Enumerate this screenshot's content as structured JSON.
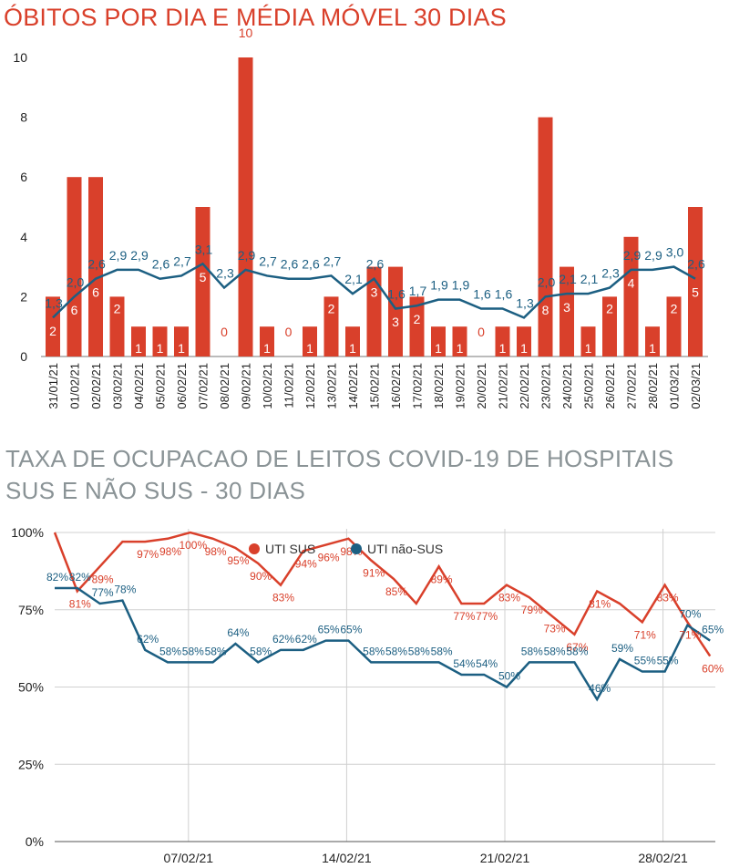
{
  "colors": {
    "red": "#d9402b",
    "blue": "#1c5f82",
    "grid": "#d0d0d0",
    "axis_text": "#222222"
  },
  "chart_data": [
    {
      "type": "bar",
      "title": "ÓBITOS POR DIA E MÉDIA MÓVEL 30 DIAS",
      "categories": [
        "31/01/21",
        "01/02/21",
        "02/02/21",
        "03/02/21",
        "04/02/21",
        "05/02/21",
        "06/02/21",
        "07/02/21",
        "08/02/21",
        "09/02/21",
        "10/02/21",
        "11/02/21",
        "12/02/21",
        "13/02/21",
        "14/02/21",
        "15/02/21",
        "16/02/21",
        "17/02/21",
        "18/02/21",
        "19/02/21",
        "20/02/21",
        "21/02/21",
        "22/02/21",
        "23/02/21",
        "24/02/21",
        "25/02/21",
        "26/02/21",
        "27/02/21",
        "28/02/21",
        "01/03/21",
        "02/03/21"
      ],
      "series": [
        {
          "type": "bar",
          "values": [
            2,
            6,
            6,
            2,
            1,
            1,
            1,
            5,
            0,
            10,
            1,
            0,
            1,
            2,
            1,
            3,
            3,
            2,
            1,
            1,
            0,
            1,
            1,
            8,
            3,
            1,
            2,
            4,
            1,
            2,
            5
          ],
          "labels": [
            "2",
            "6",
            "6",
            "2",
            "1",
            "1",
            "1",
            "5",
            "0",
            "10",
            "1",
            "0",
            "1",
            "2",
            "1",
            "3",
            "3",
            "2",
            "1",
            "1",
            "0",
            "1",
            "1",
            "8",
            "3",
            "1",
            "2",
            "4",
            "1",
            "2",
            "5"
          ]
        },
        {
          "type": "line",
          "values": [
            1.3,
            2.0,
            2.6,
            2.9,
            2.9,
            2.6,
            2.7,
            3.1,
            2.3,
            2.9,
            2.7,
            2.6,
            2.6,
            2.7,
            2.1,
            2.6,
            1.6,
            1.7,
            1.9,
            1.9,
            1.6,
            1.6,
            1.3,
            2.0,
            2.1,
            2.1,
            2.3,
            2.9,
            2.9,
            3.0,
            2.6
          ],
          "labels": [
            "1,3",
            "2,0",
            "2,6",
            "2,9",
            "2,9",
            "2,6",
            "2,7",
            "3,1",
            "2,3",
            "2,9",
            "2,7",
            "2,6",
            "2,6",
            "2,7",
            "2,1",
            "2,6",
            "1,6",
            "1,7",
            "1,9",
            "1,9",
            "1,6",
            "1,6",
            "1,3",
            "2,0",
            "2,1",
            "2,1",
            "2,3",
            "2,9",
            "2,9",
            "3,0",
            "2,6"
          ]
        }
      ],
      "y_ticks": [
        "0",
        "2",
        "4",
        "6",
        "8",
        "10"
      ],
      "ylim": [
        0,
        10
      ],
      "grid": false
    },
    {
      "type": "line",
      "title": "TAXA DE OCUPACAO DE LEITOS COVID-19 DE HOSPITAIS SUS E NÃO SUS - 30 DIAS",
      "x_ticks": [
        "07/02/21",
        "14/02/21",
        "21/02/21",
        "28/02/21"
      ],
      "y_ticks": [
        "0%",
        "25%",
        "50%",
        "75%",
        "100%"
      ],
      "ylim": [
        0,
        100
      ],
      "legend": "top-center",
      "grid": true,
      "series": [
        {
          "name": "UTI SUS",
          "values": [
            100,
            81,
            89,
            97,
            97,
            98,
            100,
            98,
            95,
            90,
            83,
            94,
            96,
            98,
            91,
            85,
            77,
            89,
            77,
            77,
            83,
            79,
            73,
            67,
            81,
            77,
            71,
            83,
            71,
            60
          ],
          "labels": [
            "",
            "81%",
            "89%",
            "",
            "97%",
            "98%",
            "100%",
            "98%",
            "95%",
            "90%",
            "83%",
            "94%",
            "96%",
            "98%",
            "91%",
            "85%",
            "",
            "89%",
            "77%",
            "77%",
            "83%",
            "79%",
            "73%",
            "67%",
            "81%",
            "",
            "71%",
            "83%",
            "71%",
            "60%"
          ]
        },
        {
          "name": "UTI não-SUS",
          "values": [
            82,
            82,
            77,
            78,
            62,
            58,
            58,
            58,
            64,
            58,
            62,
            62,
            65,
            65,
            58,
            58,
            58,
            58,
            54,
            54,
            50,
            58,
            58,
            58,
            46,
            59,
            55,
            55,
            70,
            65
          ],
          "labels": [
            "82%",
            "82%",
            "77%",
            "78%",
            "62%",
            "58%",
            "58%",
            "58%",
            "64%",
            "58%",
            "62%",
            "62%",
            "65%",
            "65%",
            "58%",
            "58%",
            "58%",
            "58%",
            "54%",
            "54%",
            "50%",
            "58%",
            "58%",
            "58%",
            "46%",
            "59%",
            "55%",
            "55%",
            "70%",
            "65%"
          ]
        }
      ]
    }
  ]
}
